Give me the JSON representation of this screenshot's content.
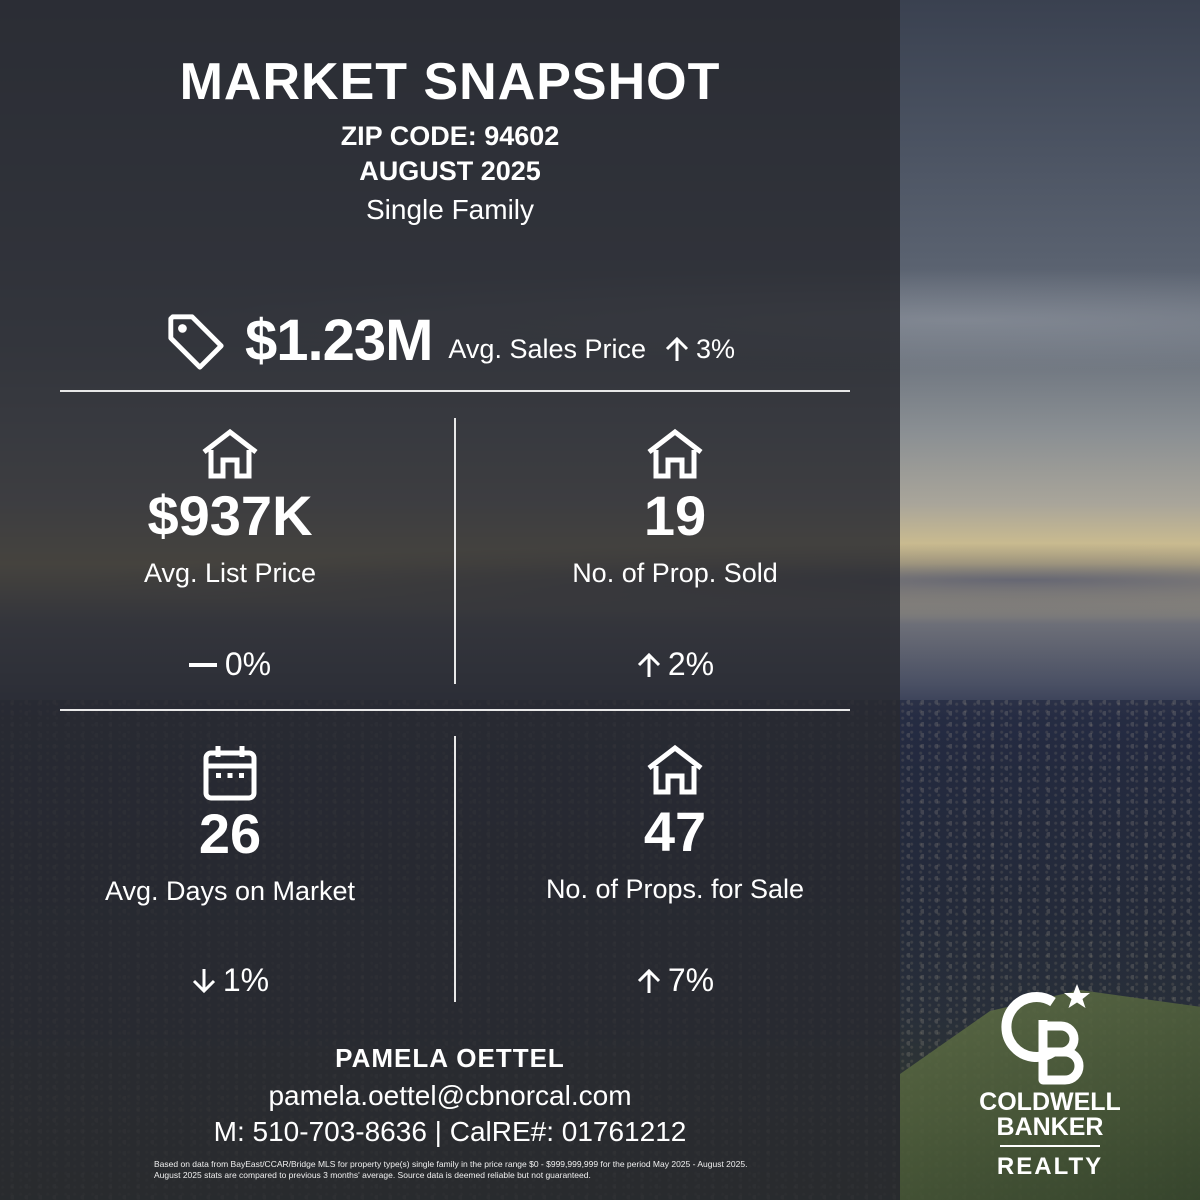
{
  "header": {
    "title": "MARKET SNAPSHOT",
    "zip": "ZIP CODE: 94602",
    "month": "AUGUST 2025",
    "property_type": "Single Family"
  },
  "headline": {
    "icon": "price-tag-icon",
    "value": "$1.23M",
    "label": "Avg. Sales Price",
    "change": "3%",
    "direction": "up"
  },
  "stats": [
    {
      "icon": "house-icon",
      "value": "$937K",
      "label": "Avg. List Price",
      "change": "0%",
      "direction": "flat"
    },
    {
      "icon": "house-icon",
      "value": "19",
      "label": "No. of Prop. Sold",
      "change": "2%",
      "direction": "up"
    },
    {
      "icon": "calendar-icon",
      "value": "26",
      "label": "Avg. Days on Market",
      "change": "1%",
      "direction": "down"
    },
    {
      "icon": "house-icon",
      "value": "47",
      "label": "No. of Props. for Sale",
      "change": "7%",
      "direction": "up"
    }
  ],
  "agent": {
    "name": "PAMELA OETTEL",
    "email": "pamela.oettel@cbnorcal.com",
    "phone_line": "M: 510-703-8636 | CalRE#: 01761212"
  },
  "disclaimer": "Based on data from BayEast/CCAR/Bridge MLS for property type(s) single family in the price range $0 - $999,999,999 for the period May 2025 - August 2025. August 2025 stats are compared to previous 3 months' average. Source data is deemed reliable but not guaranteed.",
  "brand": {
    "line1": "COLDWELL",
    "line2": "BANKER",
    "line3": "REALTY"
  }
}
